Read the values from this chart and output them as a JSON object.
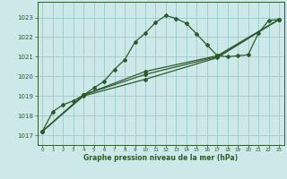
{
  "title": "Graphe pression niveau de la mer (hPa)",
  "background_color": "#cce8e8",
  "line_color": "#2d5a2d",
  "grid_color": "#99cccc",
  "xlim": [
    -0.5,
    23.5
  ],
  "ylim": [
    1016.5,
    1023.8
  ],
  "yticks": [
    1017,
    1018,
    1019,
    1020,
    1021,
    1022,
    1023
  ],
  "xticks": [
    0,
    1,
    2,
    3,
    4,
    5,
    6,
    7,
    8,
    9,
    10,
    11,
    12,
    13,
    14,
    15,
    16,
    17,
    18,
    19,
    20,
    21,
    22,
    23
  ],
  "series_main": [
    [
      0,
      1017.2
    ],
    [
      1,
      1018.2
    ],
    [
      2,
      1018.55
    ],
    [
      3,
      1018.75
    ],
    [
      4,
      1019.05
    ],
    [
      5,
      1019.4
    ],
    [
      6,
      1019.75
    ],
    [
      7,
      1020.35
    ],
    [
      8,
      1020.85
    ],
    [
      9,
      1021.75
    ],
    [
      10,
      1022.2
    ],
    [
      11,
      1022.75
    ],
    [
      12,
      1023.1
    ],
    [
      13,
      1022.95
    ],
    [
      14,
      1022.7
    ],
    [
      15,
      1022.15
    ],
    [
      16,
      1021.6
    ],
    [
      17,
      1021.05
    ],
    [
      18,
      1021.0
    ],
    [
      19,
      1021.05
    ],
    [
      20,
      1021.1
    ],
    [
      21,
      1022.2
    ],
    [
      22,
      1022.85
    ],
    [
      23,
      1022.9
    ]
  ],
  "series_straight1": [
    [
      0,
      1017.2
    ],
    [
      23,
      1022.9
    ]
  ],
  "series_straight2": [
    [
      0,
      1017.2
    ],
    [
      23,
      1022.9
    ]
  ],
  "series_straight3": [
    [
      0,
      1017.2
    ],
    [
      23,
      1022.9
    ]
  ],
  "straight_waypoints": [
    [
      0,
      1017.2
    ],
    [
      4,
      1019.0
    ],
    [
      10,
      1019.85
    ],
    [
      17,
      1020.95
    ],
    [
      23,
      1022.9
    ]
  ],
  "straight_waypoints2": [
    [
      0,
      1017.2
    ],
    [
      4,
      1019.05
    ],
    [
      10,
      1020.1
    ],
    [
      17,
      1021.0
    ],
    [
      23,
      1022.9
    ]
  ],
  "straight_waypoints3": [
    [
      0,
      1017.2
    ],
    [
      4,
      1019.05
    ],
    [
      10,
      1020.25
    ],
    [
      17,
      1021.05
    ],
    [
      23,
      1022.9
    ]
  ]
}
